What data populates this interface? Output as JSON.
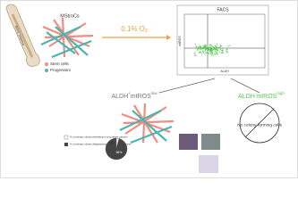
{
  "bone_label": "Bone marrow",
  "mstrocs": "MStroCs",
  "cell_legend": [
    "Stem cells",
    "Progenitors"
  ],
  "hypoxia": {
    "text": "0.1% O",
    "sub": "2"
  },
  "facs": {
    "title": "FACS",
    "y_label": "mtROS",
    "x_label": "ALDH"
  },
  "low_group": {
    "main": "ALDH",
    "sup1": "+",
    "main2": "mtROS",
    "sup2": "low"
  },
  "high_group": {
    "main": "ALDH",
    "sup1": "-",
    "main2": "mtROS",
    "sup2": "high"
  },
  "no_colony": "No colony-forming cells",
  "pie": {
    "values": [
      4,
      96
    ],
    "value_labels": [
      "4%",
      "96%"
    ]
  },
  "pie_legend": [
    "% of primary clones persisting in secondary cultures",
    "% of primary clones disappearing in secondary cultures"
  ]
}
